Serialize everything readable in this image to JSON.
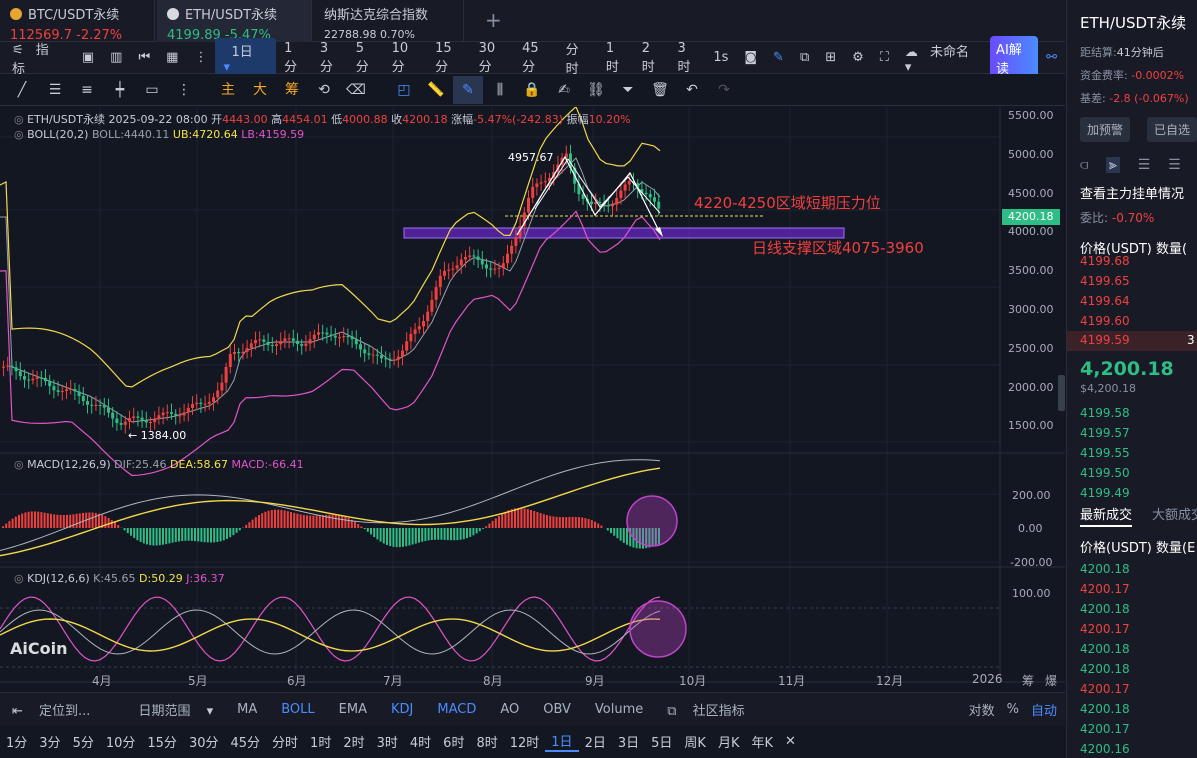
{
  "tabs": [
    {
      "name": "BTC/USDT永续",
      "price": "112569.7",
      "change": "-2.27%"
    },
    {
      "name": "ETH/USDT永续",
      "price": "4199.89",
      "change": "-5.47%"
    },
    {
      "name": "纳斯达克综合指数",
      "price": "22788.98",
      "change": "0.70%"
    }
  ],
  "add_tab": "+",
  "toolbar": {
    "indicator_label": "指标",
    "interval_selected": "1日",
    "intervals": [
      "1分",
      "3分",
      "5分",
      "10分",
      "15分",
      "30分",
      "45分",
      "分时",
      "1时",
      "2时",
      "3时"
    ],
    "sec_label": "1s",
    "layout_name": "未命名",
    "ai_label": "AI解读"
  },
  "drawing_tools": {
    "main": "主",
    "big": "大",
    "chip": "筹"
  },
  "legend": {
    "symbol_line": "ETH/USDT永续 2025-09-22 08:00",
    "open_label": "开",
    "open": "4443.00",
    "high_label": "高",
    "high": "4454.01",
    "low_label": "低",
    "low": "4000.88",
    "close_label": "收",
    "close": "4200.18",
    "chg_label": "涨幅",
    "chg": "-5.47%(-242.83)",
    "amp_label": "振幅",
    "amp": "10.20%",
    "boll_name": "BOLL(20,2)",
    "boll_mid": "BOLL:4440.11",
    "boll_ub": "UB:4720.64",
    "boll_lb": "LB:4159.59",
    "macd_name": "MACD(12,26,9)",
    "macd_dif": "DIF:25.46",
    "macd_dea": "DEA:58.67",
    "macd_val": "MACD:-66.41",
    "kdj_name": "KDJ(12,6,6)",
    "kdj_k": "K:45.65",
    "kdj_d": "D:50.29",
    "kdj_j": "J:36.37"
  },
  "annotations": {
    "high_mark": "4957.67",
    "low_mark": "← 1384.00",
    "resistance": "4220-4250区域短期压力位",
    "support": "日线支撑区域4075-3960",
    "current_price": "4200.18",
    "watermark": "AiCoin"
  },
  "price_axis": [
    "5500.00",
    "5000.00",
    "4500.00",
    "4000.00",
    "3500.00",
    "3000.00",
    "2500.00",
    "2000.00",
    "1500.00"
  ],
  "macd_axis": [
    "200.00",
    "0.00",
    "-200.00"
  ],
  "kdj_axis": [
    "100.00"
  ],
  "time_axis": [
    "4月",
    "5月",
    "6月",
    "7月",
    "8月",
    "9月",
    "10月",
    "11月",
    "12月",
    "2026"
  ],
  "time_axis_right": [
    "筹",
    "爆"
  ],
  "bottom_bar": {
    "locate": "定位到...",
    "range": "日期范围",
    "items": [
      "MA",
      "BOLL",
      "EMA",
      "KDJ",
      "MACD",
      "AO",
      "OBV",
      "Volume"
    ],
    "community": "社区指标",
    "log": "对数",
    "pct": "%",
    "auto": "自动"
  },
  "timeframes": [
    "1分",
    "3分",
    "5分",
    "10分",
    "15分",
    "30分",
    "45分",
    "分时",
    "1时",
    "2时",
    "3时",
    "4时",
    "6时",
    "8时",
    "12时",
    "1日",
    "2日",
    "3日",
    "5日",
    "周K",
    "月K",
    "年K"
  ],
  "timeframe_selected": "1日",
  "sidebar": {
    "title": "ETH/USDT永续",
    "settle_label": "距结算:",
    "settle": "41分钟后",
    "funding_label": "资金费率:",
    "funding": "-0.0002%",
    "basis_label": "基差:",
    "basis": "-2.8 (-0.067%)",
    "alert_btn": "加预警",
    "fav_btn": "已自选",
    "depth_title": "查看主力挂单情况",
    "ratio_label": "委比:",
    "ratio": "-0.70%",
    "price_col": "价格(USDT)",
    "qty_col": "数量(",
    "asks": [
      "4199.68",
      "4199.65",
      "4199.64",
      "4199.60",
      "4199.59"
    ],
    "ask_extra_qty": "3",
    "last_price": "4,200.18",
    "last_usd": "$4,200.18",
    "bids": [
      "4199.58",
      "4199.57",
      "4199.55",
      "4199.50",
      "4199.49"
    ],
    "trades_tab": "最新成交",
    "big_tab": "大额成交",
    "trade_price_col": "价格(USDT)",
    "trade_qty_col": "数量(E",
    "trades": [
      {
        "p": "4200.18",
        "side": "buy"
      },
      {
        "p": "4200.17",
        "side": "sell"
      },
      {
        "p": "4200.18",
        "side": "buy"
      },
      {
        "p": "4200.17",
        "side": "sell"
      },
      {
        "p": "4200.18",
        "side": "buy"
      },
      {
        "p": "4200.18",
        "side": "buy"
      },
      {
        "p": "4200.17",
        "side": "sell"
      },
      {
        "p": "4200.18",
        "side": "buy"
      },
      {
        "p": "4200.17",
        "side": "buy"
      },
      {
        "p": "4200.16",
        "side": "buy"
      }
    ]
  }
}
